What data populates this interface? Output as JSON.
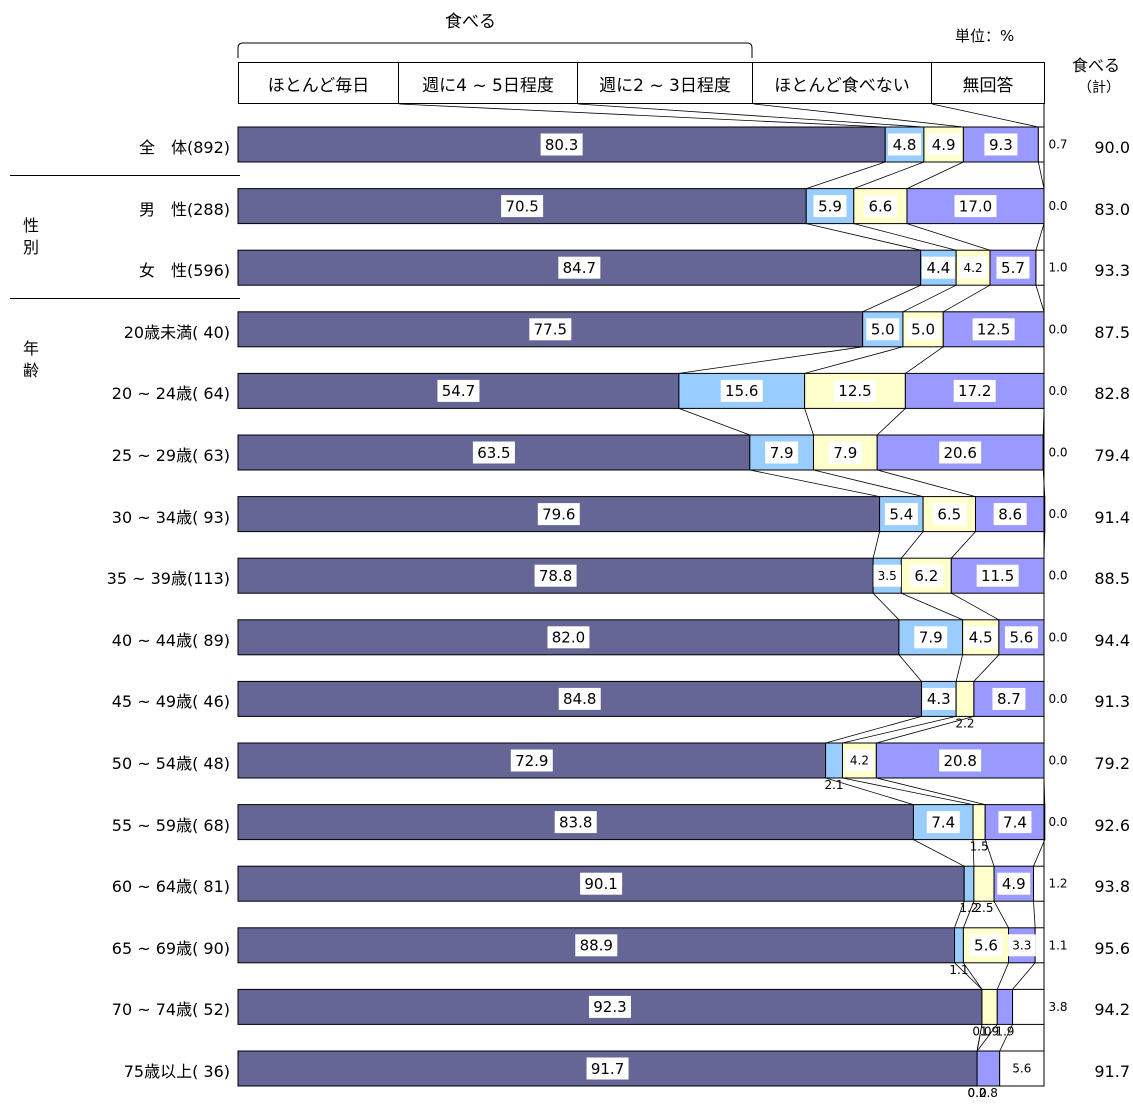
{
  "header": {
    "group_label": "食べる",
    "unit": "単位：%",
    "total_title": "食べる",
    "total_sub": "（計）"
  },
  "groups": {
    "gender": "性別",
    "age": "年齢"
  },
  "colors": {
    "daily": "#656596",
    "four_five": "#99ccff",
    "two_three": "#ffffcc",
    "rarely": "#9999ff",
    "no_answer": "#ffffff"
  },
  "chart_data": {
    "type": "bar",
    "orientation": "horizontal",
    "stacked": true,
    "xlim": [
      0,
      100
    ],
    "unit": "単位：%",
    "legend": [
      "ほとんど毎日",
      "週に4 ~ 5日程度",
      "週に2 ~ 3日程度",
      "ほとんど食べない",
      "無回答"
    ],
    "total_column": "食べる（計）",
    "rows": [
      {
        "label": "全　体(892)",
        "values": [
          80.3,
          4.8,
          4.9,
          9.3,
          0.7
        ],
        "total": "90.0"
      },
      {
        "label": "男　性(288)",
        "values": [
          70.5,
          5.9,
          6.6,
          17.0,
          0.0
        ],
        "total": "83.0"
      },
      {
        "label": "女　性(596)",
        "values": [
          84.7,
          4.4,
          4.2,
          5.7,
          1.0
        ],
        "total": "93.3"
      },
      {
        "label": "20歳未満( 40)",
        "values": [
          77.5,
          5.0,
          5.0,
          12.5,
          0.0
        ],
        "total": "87.5"
      },
      {
        "label": "20 ~ 24歳( 64)",
        "values": [
          54.7,
          15.6,
          12.5,
          17.2,
          0.0
        ],
        "total": "82.8"
      },
      {
        "label": "25 ~ 29歳( 63)",
        "values": [
          63.5,
          7.9,
          7.9,
          20.6,
          0.0
        ],
        "total": "79.4"
      },
      {
        "label": "30 ~ 34歳( 93)",
        "values": [
          79.6,
          5.4,
          6.5,
          8.6,
          0.0
        ],
        "total": "91.4"
      },
      {
        "label": "35 ~ 39歳(113)",
        "values": [
          78.8,
          3.5,
          6.2,
          11.5,
          0.0
        ],
        "total": "88.5"
      },
      {
        "label": "40 ~ 44歳( 89)",
        "values": [
          82.0,
          7.9,
          4.5,
          5.6,
          0.0
        ],
        "total": "94.4"
      },
      {
        "label": "45 ~ 49歳( 46)",
        "values": [
          84.8,
          4.3,
          2.2,
          8.7,
          0.0
        ],
        "total": "91.3"
      },
      {
        "label": "50 ~ 54歳( 48)",
        "values": [
          72.9,
          2.1,
          4.2,
          20.8,
          0.0
        ],
        "total": "79.2"
      },
      {
        "label": "55 ~ 59歳( 68)",
        "values": [
          83.8,
          7.4,
          1.5,
          7.4,
          0.0
        ],
        "total": "92.6"
      },
      {
        "label": "60 ~ 64歳( 81)",
        "values": [
          90.1,
          1.2,
          2.5,
          4.9,
          1.2
        ],
        "total": "93.8"
      },
      {
        "label": "65 ~ 69歳( 90)",
        "values": [
          88.9,
          1.1,
          5.6,
          3.3,
          1.1
        ],
        "total": "95.6"
      },
      {
        "label": "70 ~ 74歳( 52)",
        "values": [
          92.3,
          0.0,
          1.9,
          1.9,
          3.8
        ],
        "total": "94.2"
      },
      {
        "label": "75歳以上( 36)",
        "values": [
          91.7,
          0.0,
          0.0,
          2.8,
          5.6
        ],
        "total": "91.7"
      }
    ]
  }
}
